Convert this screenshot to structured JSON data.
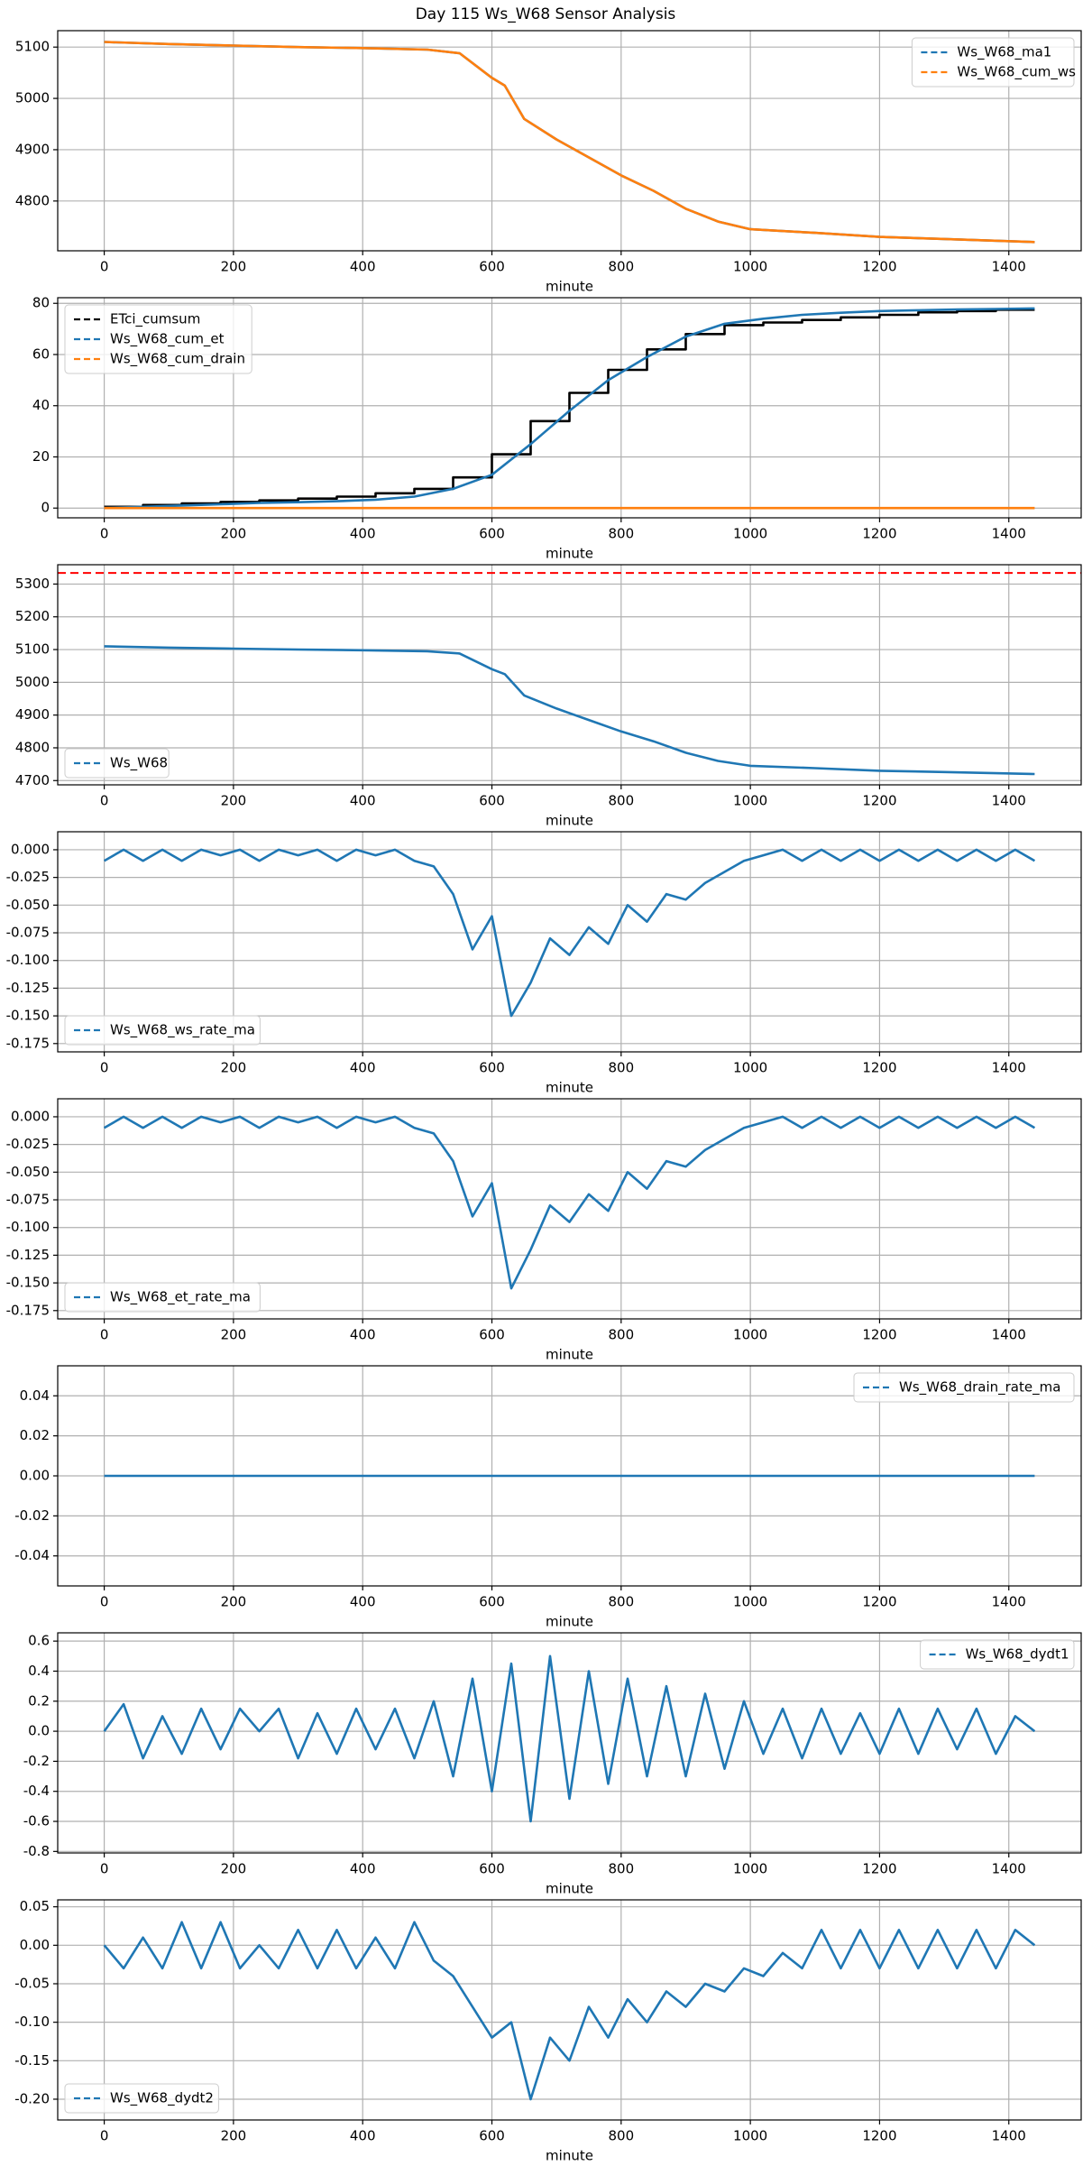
{
  "title": "Day 115 Ws_W68 Sensor Analysis",
  "chart_data": [
    {
      "type": "line",
      "xlabel": "minute",
      "legend": "upper right",
      "grid": true,
      "xlim": [
        -72,
        1512
      ],
      "xticks": [
        0,
        200,
        400,
        600,
        800,
        1000,
        1200,
        1400
      ],
      "ylim": [
        4703,
        5132
      ],
      "yticks": [
        4800,
        4900,
        5000,
        5100
      ],
      "x": [
        0,
        100,
        200,
        300,
        400,
        500,
        550,
        600,
        620,
        650,
        700,
        750,
        800,
        850,
        900,
        950,
        1000,
        1100,
        1200,
        1300,
        1440
      ],
      "series": [
        {
          "name": "Ws_W68_ma1",
          "color": "#1f77b4",
          "values": [
            5110,
            5106,
            5103,
            5100,
            5098,
            5095,
            5088,
            5040,
            5025,
            4960,
            4920,
            4885,
            4850,
            4820,
            4785,
            4760,
            4745,
            4738,
            4730,
            4726,
            4720
          ]
        },
        {
          "name": "Ws_W68_cum_ws",
          "color": "#ff7f0e",
          "values": [
            5110,
            5106,
            5103,
            5100,
            5098,
            5095,
            5088,
            5040,
            5025,
            4960,
            4920,
            4885,
            4850,
            4820,
            4785,
            4760,
            4745,
            4738,
            4730,
            4726,
            4720
          ]
        }
      ]
    },
    {
      "type": "line",
      "xlabel": "minute",
      "legend": "upper left",
      "grid": true,
      "xlim": [
        -72,
        1512
      ],
      "xticks": [
        0,
        200,
        400,
        600,
        800,
        1000,
        1200,
        1400
      ],
      "ylim": [
        -3.8,
        82.2
      ],
      "yticks": [
        0,
        20,
        40,
        60,
        80
      ],
      "x": [
        0,
        60,
        120,
        180,
        240,
        300,
        360,
        420,
        480,
        540,
        600,
        660,
        720,
        780,
        840,
        900,
        960,
        1020,
        1080,
        1140,
        1200,
        1260,
        1320,
        1380,
        1440
      ],
      "series": [
        {
          "name": "ETci_cumsum",
          "color": "#000000",
          "drawstyle": "steps-post",
          "values": [
            0.5,
            1.2,
            1.8,
            2.4,
            3,
            3.7,
            4.5,
            5.8,
            7.5,
            12,
            21,
            34,
            45,
            54,
            62,
            68,
            71.5,
            72.5,
            73.5,
            74.5,
            75.5,
            76.5,
            77,
            77.5,
            77.5
          ]
        },
        {
          "name": "Ws_W68_cum_et",
          "color": "#1f77b4",
          "values": [
            0,
            0.5,
            1,
            1.5,
            2,
            2.3,
            2.7,
            3.3,
            4.5,
            7.5,
            13,
            25,
            38,
            50,
            59,
            67,
            72,
            74,
            75.5,
            76.3,
            77,
            77.3,
            77.6,
            77.8,
            78
          ]
        },
        {
          "name": "Ws_W68_cum_drain",
          "color": "#ff7f0e",
          "values": [
            0,
            0,
            0,
            0,
            0,
            0,
            0,
            0,
            0,
            0,
            0,
            0,
            0,
            0,
            0,
            0,
            0,
            0,
            0,
            0,
            0,
            0,
            0,
            0,
            0
          ]
        }
      ]
    },
    {
      "type": "line",
      "xlabel": "minute",
      "legend": "lower left",
      "grid": true,
      "xlim": [
        -72,
        1512
      ],
      "xticks": [
        0,
        200,
        400,
        600,
        800,
        1000,
        1200,
        1400
      ],
      "ylim": [
        4687,
        5359
      ],
      "yticks": [
        4700,
        4800,
        4900,
        5000,
        5100,
        5200,
        5300
      ],
      "hlines": [
        {
          "y": 5334,
          "color": "red",
          "linestyle": "--"
        }
      ],
      "x": [
        0,
        100,
        200,
        300,
        400,
        500,
        550,
        600,
        620,
        650,
        700,
        750,
        800,
        850,
        900,
        950,
        1000,
        1100,
        1200,
        1300,
        1440
      ],
      "series": [
        {
          "name": "Ws_W68",
          "color": "#1f77b4",
          "values": [
            5110,
            5106,
            5103,
            5100,
            5098,
            5095,
            5088,
            5040,
            5025,
            4960,
            4920,
            4885,
            4850,
            4820,
            4785,
            4760,
            4745,
            4738,
            4730,
            4726,
            4720
          ]
        }
      ]
    },
    {
      "type": "line",
      "xlabel": "minute",
      "legend": "lower left",
      "grid": true,
      "xlim": [
        -72,
        1512
      ],
      "xticks": [
        0,
        200,
        400,
        600,
        800,
        1000,
        1200,
        1400
      ],
      "ylim": [
        -0.1825,
        0.01625
      ],
      "yticks": [
        {
          "value": 0,
          "label": "0.000"
        },
        {
          "value": -0.025,
          "label": "-0.025"
        },
        {
          "value": -0.05,
          "label": "-0.050"
        },
        {
          "value": -0.075,
          "label": "-0.075"
        },
        {
          "value": -0.1,
          "label": "-0.100"
        },
        {
          "value": -0.125,
          "label": "-0.125"
        },
        {
          "value": -0.15,
          "label": "-0.150"
        },
        {
          "value": -0.175,
          "label": "-0.175"
        }
      ],
      "x": [
        0,
        30,
        60,
        90,
        120,
        150,
        180,
        210,
        240,
        270,
        300,
        330,
        360,
        390,
        420,
        450,
        480,
        510,
        540,
        570,
        600,
        630,
        660,
        690,
        720,
        750,
        780,
        810,
        840,
        870,
        900,
        930,
        960,
        990,
        1020,
        1050,
        1080,
        1110,
        1140,
        1170,
        1200,
        1230,
        1260,
        1290,
        1320,
        1350,
        1380,
        1410,
        1440
      ],
      "series": [
        {
          "name": "Ws_W68_ws_rate_ma",
          "color": "#1f77b4",
          "values": [
            -0.01,
            0,
            -0.01,
            0,
            -0.01,
            0,
            -0.005,
            0,
            -0.01,
            0,
            -0.005,
            0,
            -0.01,
            0,
            -0.005,
            0,
            -0.01,
            -0.015,
            -0.04,
            -0.09,
            -0.06,
            -0.15,
            -0.12,
            -0.08,
            -0.095,
            -0.07,
            -0.085,
            -0.05,
            -0.065,
            -0.04,
            -0.045,
            -0.03,
            -0.02,
            -0.01,
            -0.005,
            0,
            -0.01,
            0,
            -0.01,
            0,
            -0.01,
            0,
            -0.01,
            0,
            -0.01,
            0,
            -0.01,
            0,
            -0.01
          ]
        }
      ]
    },
    {
      "type": "line",
      "xlabel": "minute",
      "legend": "lower left",
      "grid": true,
      "xlim": [
        -72,
        1512
      ],
      "xticks": [
        0,
        200,
        400,
        600,
        800,
        1000,
        1200,
        1400
      ],
      "ylim": [
        -0.1825,
        0.01625
      ],
      "yticks": [
        {
          "value": 0,
          "label": "0.000"
        },
        {
          "value": -0.025,
          "label": "-0.025"
        },
        {
          "value": -0.05,
          "label": "-0.050"
        },
        {
          "value": -0.075,
          "label": "-0.075"
        },
        {
          "value": -0.1,
          "label": "-0.100"
        },
        {
          "value": -0.125,
          "label": "-0.125"
        },
        {
          "value": -0.15,
          "label": "-0.150"
        },
        {
          "value": -0.175,
          "label": "-0.175"
        }
      ],
      "x": [
        0,
        30,
        60,
        90,
        120,
        150,
        180,
        210,
        240,
        270,
        300,
        330,
        360,
        390,
        420,
        450,
        480,
        510,
        540,
        570,
        600,
        630,
        660,
        690,
        720,
        750,
        780,
        810,
        840,
        870,
        900,
        930,
        960,
        990,
        1020,
        1050,
        1080,
        1110,
        1140,
        1170,
        1200,
        1230,
        1260,
        1290,
        1320,
        1350,
        1380,
        1410,
        1440
      ],
      "series": [
        {
          "name": "Ws_W68_et_rate_ma",
          "color": "#1f77b4",
          "values": [
            -0.01,
            0,
            -0.01,
            0,
            -0.01,
            0,
            -0.005,
            0,
            -0.01,
            0,
            -0.005,
            0,
            -0.01,
            0,
            -0.005,
            0,
            -0.01,
            -0.015,
            -0.04,
            -0.09,
            -0.06,
            -0.155,
            -0.12,
            -0.08,
            -0.095,
            -0.07,
            -0.085,
            -0.05,
            -0.065,
            -0.04,
            -0.045,
            -0.03,
            -0.02,
            -0.01,
            -0.005,
            0,
            -0.01,
            0,
            -0.01,
            0,
            -0.01,
            0,
            -0.01,
            0,
            -0.01,
            0,
            -0.01,
            0,
            -0.01
          ]
        }
      ]
    },
    {
      "type": "line",
      "xlabel": "minute",
      "legend": "upper right",
      "grid": true,
      "xlim": [
        -72,
        1512
      ],
      "xticks": [
        0,
        200,
        400,
        600,
        800,
        1000,
        1200,
        1400
      ],
      "ylim": [
        -0.055,
        0.055
      ],
      "yticks": [
        -0.04,
        -0.02,
        {
          "value": 0,
          "label": "0.00"
        },
        0.02,
        0.04
      ],
      "x": [
        0,
        1440
      ],
      "series": [
        {
          "name": "Ws_W68_drain_rate_ma",
          "color": "#1f77b4",
          "values": [
            0,
            0
          ]
        }
      ]
    },
    {
      "type": "line",
      "xlabel": "minute",
      "legend": "upper right",
      "grid": true,
      "xlim": [
        -72,
        1512
      ],
      "xticks": [
        0,
        200,
        400,
        600,
        800,
        1000,
        1200,
        1400
      ],
      "ylim": [
        -0.81,
        0.655
      ],
      "yticks": [
        -0.8,
        -0.6,
        -0.4,
        -0.2,
        {
          "value": 0,
          "label": "0.0"
        },
        0.2,
        0.4,
        0.6
      ],
      "x": [
        0,
        30,
        60,
        90,
        120,
        150,
        180,
        210,
        240,
        270,
        300,
        330,
        360,
        390,
        420,
        450,
        480,
        510,
        540,
        570,
        600,
        630,
        660,
        690,
        720,
        750,
        780,
        810,
        840,
        870,
        900,
        930,
        960,
        990,
        1020,
        1050,
        1080,
        1110,
        1140,
        1170,
        1200,
        1230,
        1260,
        1290,
        1320,
        1350,
        1380,
        1410,
        1440
      ],
      "series": [
        {
          "name": "Ws_W68_dydt1",
          "color": "#1f77b4",
          "values": [
            0,
            0.18,
            -0.18,
            0.1,
            -0.15,
            0.15,
            -0.12,
            0.15,
            0,
            0.15,
            -0.18,
            0.12,
            -0.15,
            0.15,
            -0.12,
            0.15,
            -0.18,
            0.2,
            -0.3,
            0.35,
            -0.4,
            0.45,
            -0.6,
            0.5,
            -0.45,
            0.4,
            -0.35,
            0.35,
            -0.3,
            0.3,
            -0.3,
            0.25,
            -0.25,
            0.2,
            -0.15,
            0.15,
            -0.18,
            0.15,
            -0.15,
            0.12,
            -0.15,
            0.15,
            -0.15,
            0.15,
            -0.12,
            0.15,
            -0.15,
            0.1,
            0
          ]
        }
      ]
    },
    {
      "type": "line",
      "xlabel": "minute",
      "legend": "lower left",
      "grid": true,
      "xlim": [
        -72,
        1512
      ],
      "xticks": [
        0,
        200,
        400,
        600,
        800,
        1000,
        1200,
        1400
      ],
      "ylim": [
        -0.227,
        0.059
      ],
      "yticks": [
        {
          "value": -0.2,
          "label": "-0.20"
        },
        {
          "value": -0.15,
          "label": "-0.15"
        },
        {
          "value": -0.1,
          "label": "-0.10"
        },
        {
          "value": -0.05,
          "label": "-0.05"
        },
        {
          "value": 0,
          "label": "0.00"
        },
        0.05
      ],
      "x": [
        0,
        30,
        60,
        90,
        120,
        150,
        180,
        210,
        240,
        270,
        300,
        330,
        360,
        390,
        420,
        450,
        480,
        510,
        540,
        570,
        600,
        630,
        660,
        690,
        720,
        750,
        780,
        810,
        840,
        870,
        900,
        930,
        960,
        990,
        1020,
        1050,
        1080,
        1110,
        1140,
        1170,
        1200,
        1230,
        1260,
        1290,
        1320,
        1350,
        1380,
        1410,
        1440
      ],
      "series": [
        {
          "name": "Ws_W68_dydt2",
          "color": "#1f77b4",
          "values": [
            0,
            -0.03,
            0.01,
            -0.03,
            0.03,
            -0.03,
            0.03,
            -0.03,
            0,
            -0.03,
            0.02,
            -0.03,
            0.02,
            -0.03,
            0.01,
            -0.03,
            0.03,
            -0.02,
            -0.04,
            -0.08,
            -0.12,
            -0.1,
            -0.2,
            -0.12,
            -0.15,
            -0.08,
            -0.12,
            -0.07,
            -0.1,
            -0.06,
            -0.08,
            -0.05,
            -0.06,
            -0.03,
            -0.04,
            -0.01,
            -0.03,
            0.02,
            -0.03,
            0.02,
            -0.03,
            0.02,
            -0.03,
            0.02,
            -0.03,
            0.02,
            -0.03,
            0.02,
            0
          ]
        }
      ]
    }
  ]
}
